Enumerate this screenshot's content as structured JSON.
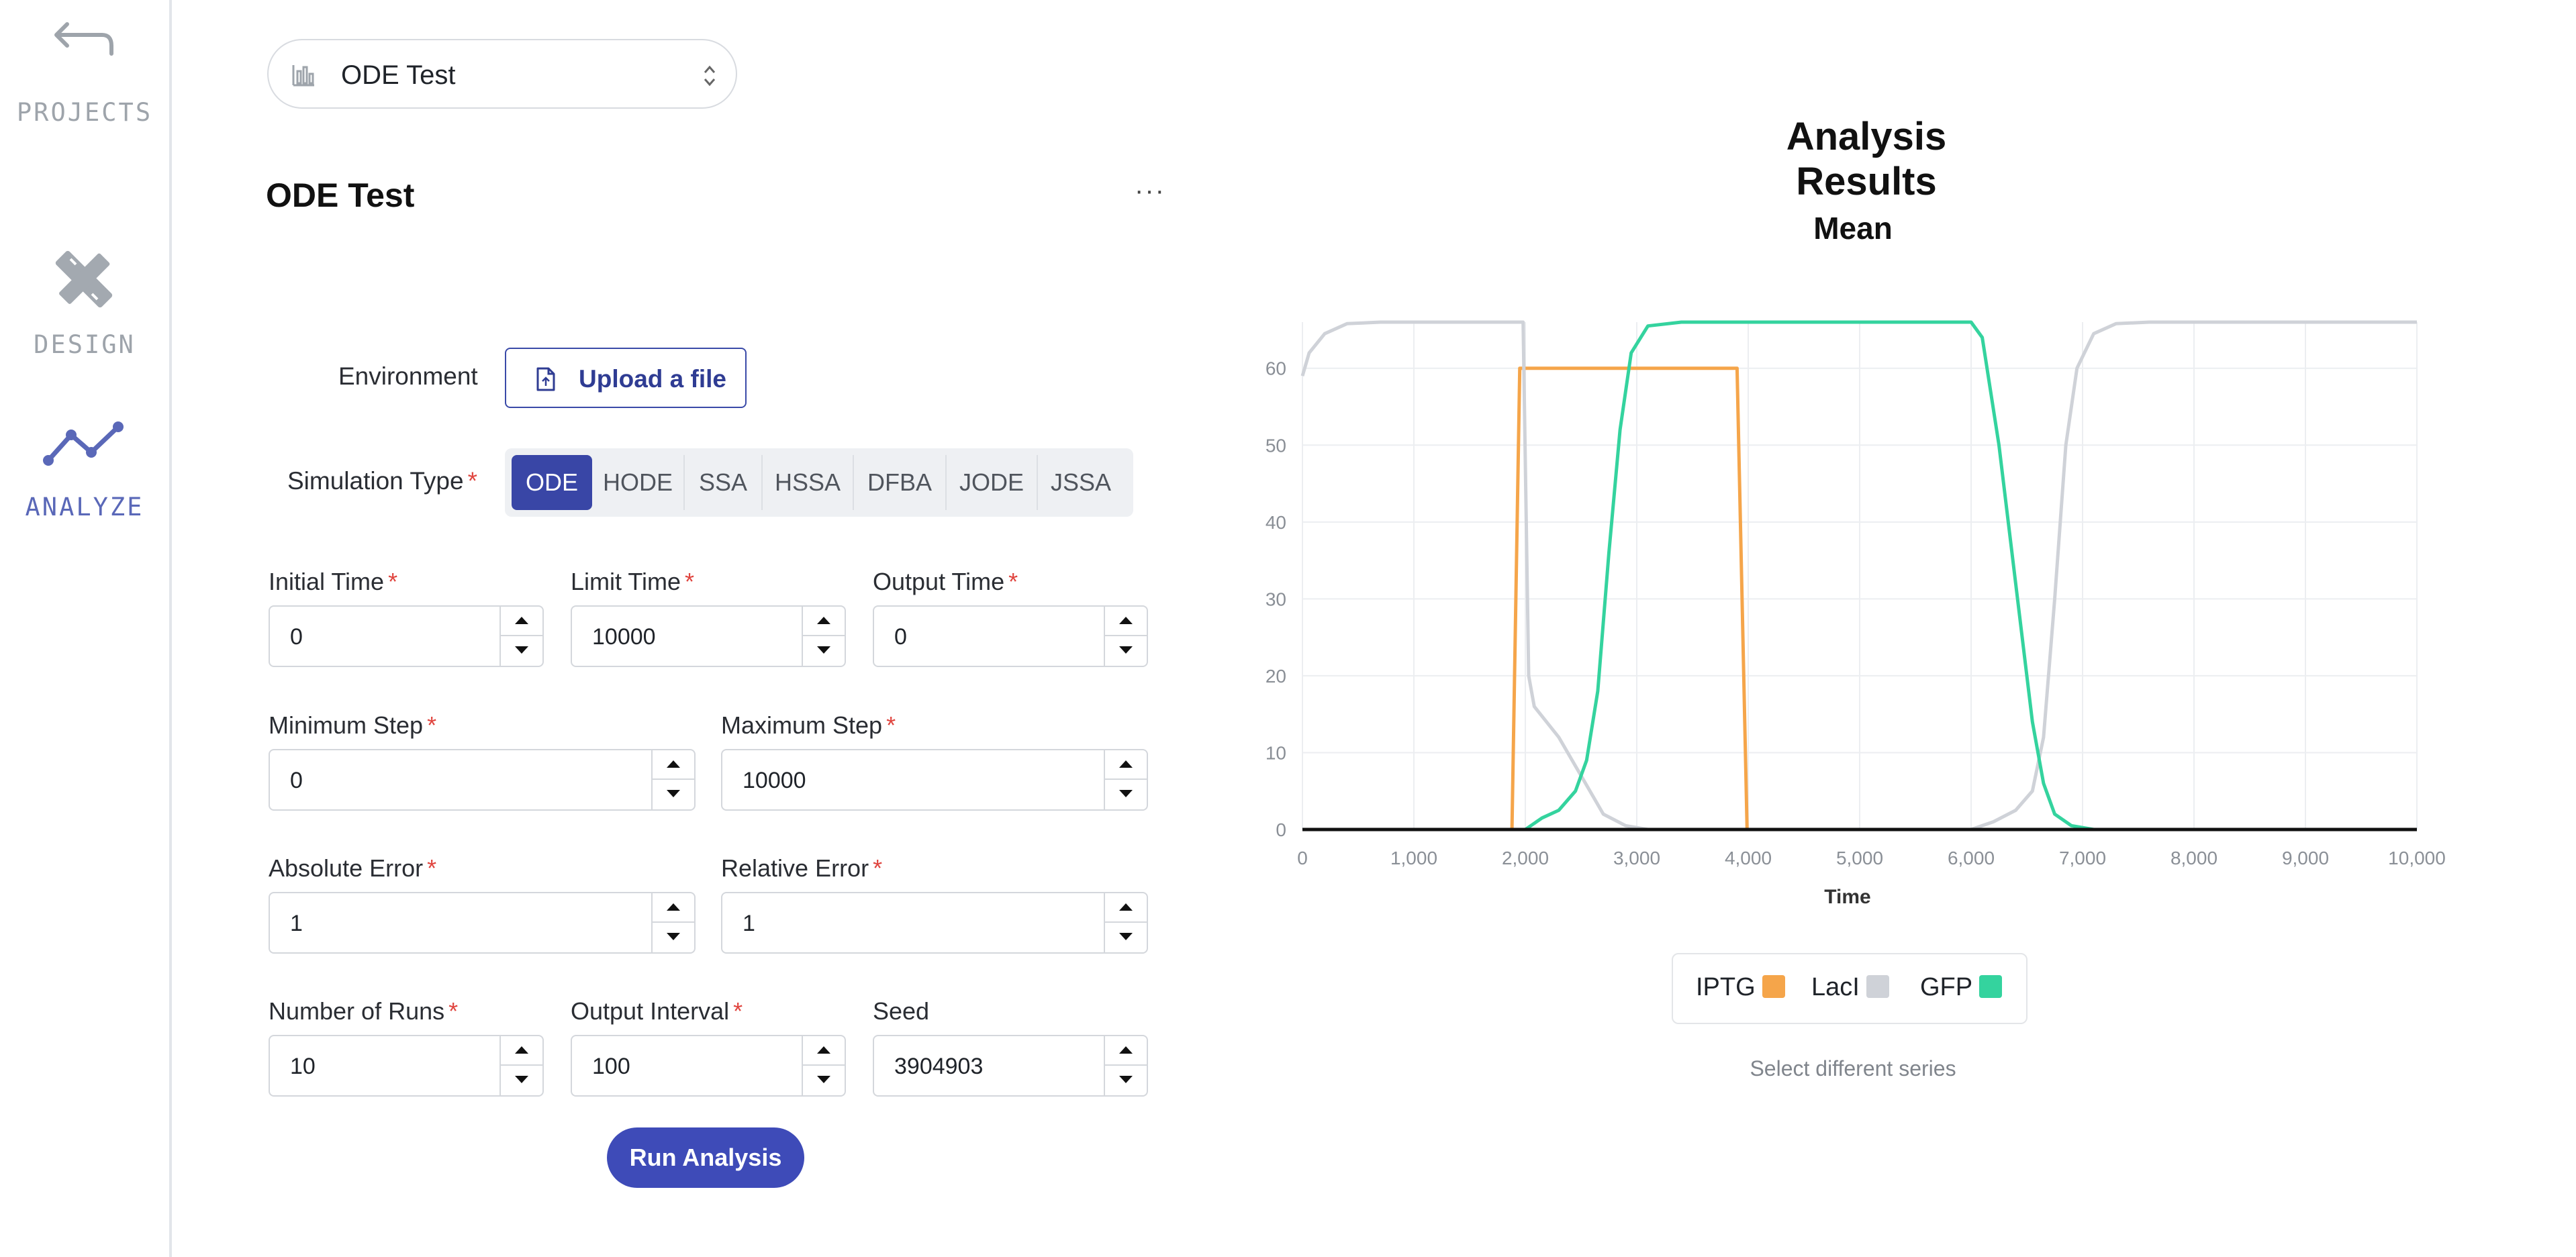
{
  "sidebar": {
    "items": [
      {
        "label": "PROJECTS",
        "icon": "undo-arrow-icon"
      },
      {
        "label": "DESIGN",
        "icon": "pencil-ruler-icon"
      },
      {
        "label": "ANALYZE",
        "icon": "line-chart-icon"
      }
    ],
    "colors": {
      "active": "#5a68b8",
      "inactive": "#9ea4ab"
    }
  },
  "selector": {
    "value": "ODE Test",
    "icon": "chart-icon"
  },
  "panel": {
    "title": "ODE Test",
    "more": "···"
  },
  "environment": {
    "label": "Environment",
    "upload_label": "Upload a file"
  },
  "simulation_type": {
    "label": "Simulation Type",
    "required": "*",
    "options": [
      "ODE",
      "HODE",
      "SSA",
      "HSSA",
      "DFBA",
      "JODE",
      "JSSA"
    ],
    "selected": "ODE"
  },
  "fields": {
    "initial_time": {
      "label": "Initial Time",
      "value": "0",
      "required": "*"
    },
    "limit_time": {
      "label": "Limit Time",
      "value": "10000",
      "required": "*"
    },
    "output_time": {
      "label": "Output Time",
      "value": "0",
      "required": "*"
    },
    "minimum_step": {
      "label": "Minimum Step",
      "value": "0",
      "required": "*"
    },
    "maximum_step": {
      "label": "Maximum Step",
      "value": "10000",
      "required": "*"
    },
    "absolute_error": {
      "label": "Absolute Error",
      "value": "1",
      "required": "*"
    },
    "relative_error": {
      "label": "Relative Error",
      "value": "1",
      "required": "*"
    },
    "number_of_runs": {
      "label": "Number of Runs",
      "value": "10",
      "required": "*"
    },
    "output_interval": {
      "label": "Output Interval",
      "value": "100",
      "required": "*"
    },
    "seed": {
      "label": "Seed",
      "value": "3904903"
    }
  },
  "run_button": "Run Analysis",
  "results": {
    "title": "Analysis Results",
    "select_series": "Select different series"
  },
  "colors": {
    "accent": "#3946a6",
    "iptg": "#f5a54a",
    "laci": "#cfd2d8",
    "gfp": "#34d39e",
    "baseline": "#111111"
  },
  "chart_data": {
    "type": "line",
    "title": "Mean",
    "xlabel": "Time",
    "ylabel": "",
    "xlim": [
      0,
      10000
    ],
    "ylim": [
      0,
      66
    ],
    "x_ticks": [
      "0",
      "1,000",
      "2,000",
      "3,000",
      "4,000",
      "5,000",
      "6,000",
      "7,000",
      "8,000",
      "9,000",
      "10,000"
    ],
    "y_ticks": [
      "0",
      "10",
      "20",
      "30",
      "40",
      "50",
      "60"
    ],
    "grid": true,
    "legend_position": "bottom",
    "series": [
      {
        "name": "IPTG",
        "color": "#f5a54a",
        "points": [
          [
            0,
            0
          ],
          [
            1880,
            0
          ],
          [
            1950,
            60
          ],
          [
            3900,
            60
          ],
          [
            3990,
            0
          ],
          [
            10000,
            0
          ]
        ]
      },
      {
        "name": "LacI",
        "color": "#cfd2d8",
        "points": [
          [
            0,
            59
          ],
          [
            60,
            62
          ],
          [
            200,
            64.5
          ],
          [
            400,
            65.8
          ],
          [
            700,
            66
          ],
          [
            1980,
            66
          ],
          [
            2030,
            20
          ],
          [
            2080,
            16
          ],
          [
            2300,
            12
          ],
          [
            2500,
            7
          ],
          [
            2700,
            2
          ],
          [
            2900,
            0.5
          ],
          [
            3100,
            0
          ],
          [
            6000,
            0
          ],
          [
            6200,
            1
          ],
          [
            6400,
            2.5
          ],
          [
            6550,
            5
          ],
          [
            6650,
            12
          ],
          [
            6750,
            30
          ],
          [
            6850,
            50
          ],
          [
            6950,
            60
          ],
          [
            7100,
            64.5
          ],
          [
            7300,
            65.8
          ],
          [
            7600,
            66
          ],
          [
            10000,
            66
          ]
        ]
      },
      {
        "name": "GFP",
        "color": "#34d39e",
        "points": [
          [
            0,
            0
          ],
          [
            2000,
            0
          ],
          [
            2150,
            1.5
          ],
          [
            2300,
            2.5
          ],
          [
            2450,
            5
          ],
          [
            2550,
            9
          ],
          [
            2650,
            18
          ],
          [
            2750,
            36
          ],
          [
            2850,
            52
          ],
          [
            2950,
            62
          ],
          [
            3100,
            65.5
          ],
          [
            3400,
            66
          ],
          [
            6000,
            66
          ],
          [
            6100,
            64
          ],
          [
            6250,
            50
          ],
          [
            6400,
            32
          ],
          [
            6550,
            14
          ],
          [
            6650,
            6
          ],
          [
            6750,
            2
          ],
          [
            6900,
            0.5
          ],
          [
            7100,
            0
          ],
          [
            10000,
            0
          ]
        ]
      },
      {
        "name": "",
        "color": "#111111",
        "points": [
          [
            0,
            0
          ],
          [
            10000,
            0
          ]
        ]
      }
    ]
  }
}
